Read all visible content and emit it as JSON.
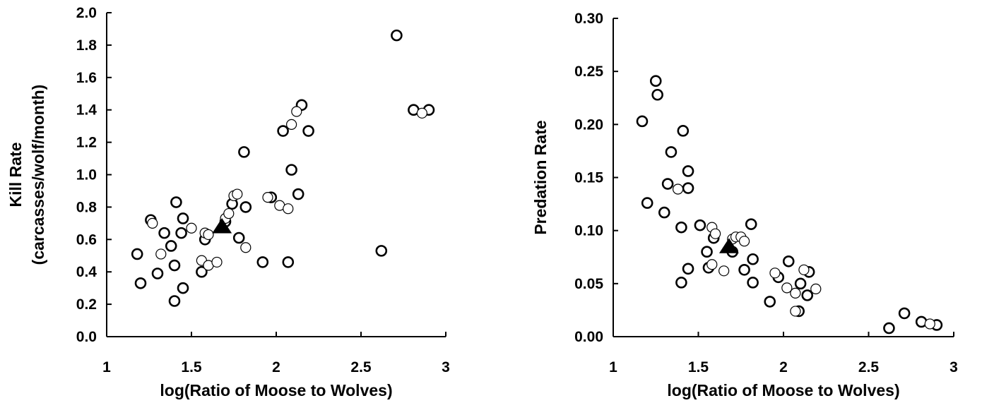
{
  "chart_data": [
    {
      "type": "scatter",
      "title": "",
      "xlabel": "log(Ratio of Moose to Wolves)",
      "ylabel": [
        "Kill Rate",
        "(carcasses/wolf/month)"
      ],
      "xlim": [
        1,
        3
      ],
      "ylim": [
        0,
        2.0
      ],
      "x_ticks": [
        "1",
        "1.5",
        "2",
        "2.5",
        "3"
      ],
      "y_ticks": [
        "0.0",
        "0.2",
        "0.4",
        "0.6",
        "0.8",
        "1.0",
        "1.2",
        "1.4",
        "1.6",
        "1.8",
        "2.0"
      ],
      "grid": false,
      "legend": "none",
      "series": [
        {
          "marker": "open-circle-thick",
          "points": [
            [
              1.18,
              0.51
            ],
            [
              1.2,
              0.33
            ],
            [
              1.26,
              0.72
            ],
            [
              1.3,
              0.39
            ],
            [
              1.34,
              0.64
            ],
            [
              1.38,
              0.56
            ],
            [
              1.4,
              0.22
            ],
            [
              1.4,
              0.44
            ],
            [
              1.41,
              0.83
            ],
            [
              1.44,
              0.64
            ],
            [
              1.45,
              0.73
            ],
            [
              1.45,
              0.3
            ],
            [
              1.56,
              0.4
            ],
            [
              1.58,
              0.6
            ],
            [
              1.7,
              0.71
            ],
            [
              1.74,
              0.82
            ],
            [
              1.78,
              0.61
            ],
            [
              1.81,
              1.14
            ],
            [
              1.82,
              0.8
            ],
            [
              1.92,
              0.46
            ],
            [
              1.97,
              0.86
            ],
            [
              2.04,
              1.27
            ],
            [
              2.07,
              0.46
            ],
            [
              2.09,
              1.03
            ],
            [
              2.13,
              0.88
            ],
            [
              2.15,
              1.43
            ],
            [
              2.19,
              1.27
            ],
            [
              2.62,
              0.53
            ],
            [
              2.71,
              1.86
            ],
            [
              2.81,
              1.4
            ],
            [
              2.9,
              1.4
            ]
          ]
        },
        {
          "marker": "open-circle-thin",
          "points": [
            [
              1.27,
              0.7
            ],
            [
              1.32,
              0.51
            ],
            [
              1.5,
              0.67
            ],
            [
              1.56,
              0.47
            ],
            [
              1.58,
              0.64
            ],
            [
              1.6,
              0.44
            ],
            [
              1.6,
              0.63
            ],
            [
              1.65,
              0.46
            ],
            [
              1.7,
              0.73
            ],
            [
              1.72,
              0.76
            ],
            [
              1.75,
              0.87
            ],
            [
              1.77,
              0.88
            ],
            [
              1.82,
              0.55
            ],
            [
              1.95,
              0.86
            ],
            [
              2.02,
              0.81
            ],
            [
              2.07,
              0.79
            ],
            [
              2.09,
              1.31
            ],
            [
              2.12,
              1.39
            ],
            [
              2.86,
              1.38
            ]
          ]
        },
        {
          "marker": "filled-triangle",
          "points": [
            [
              1.68,
              0.68
            ]
          ]
        }
      ]
    },
    {
      "type": "scatter",
      "title": "",
      "xlabel": "log(Ratio of Moose to Wolves)",
      "ylabel": [
        "Predation Rate"
      ],
      "xlim": [
        1,
        3
      ],
      "ylim": [
        0,
        0.3
      ],
      "x_ticks": [
        "1",
        "1.5",
        "2",
        "2.5",
        "3"
      ],
      "y_ticks": [
        "0.00",
        "0.05",
        "0.10",
        "0.15",
        "0.20",
        "0.25",
        "0.30"
      ],
      "grid": false,
      "legend": "none",
      "series": [
        {
          "marker": "open-circle-thick",
          "points": [
            [
              1.17,
              0.203
            ],
            [
              1.2,
              0.126
            ],
            [
              1.25,
              0.241
            ],
            [
              1.26,
              0.228
            ],
            [
              1.3,
              0.117
            ],
            [
              1.32,
              0.144
            ],
            [
              1.34,
              0.174
            ],
            [
              1.4,
              0.051
            ],
            [
              1.4,
              0.103
            ],
            [
              1.41,
              0.194
            ],
            [
              1.44,
              0.14
            ],
            [
              1.44,
              0.156
            ],
            [
              1.44,
              0.064
            ],
            [
              1.51,
              0.105
            ],
            [
              1.55,
              0.08
            ],
            [
              1.56,
              0.065
            ],
            [
              1.59,
              0.093
            ],
            [
              1.7,
              0.08
            ],
            [
              1.77,
              0.063
            ],
            [
              1.81,
              0.106
            ],
            [
              1.82,
              0.073
            ],
            [
              1.82,
              0.051
            ],
            [
              1.92,
              0.033
            ],
            [
              1.97,
              0.056
            ],
            [
              2.03,
              0.071
            ],
            [
              2.09,
              0.024
            ],
            [
              2.1,
              0.05
            ],
            [
              2.14,
              0.039
            ],
            [
              2.15,
              0.061
            ],
            [
              2.62,
              0.008
            ],
            [
              2.71,
              0.022
            ],
            [
              2.81,
              0.014
            ],
            [
              2.9,
              0.011
            ]
          ]
        },
        {
          "marker": "open-circle-thin",
          "points": [
            [
              1.38,
              0.139
            ],
            [
              1.58,
              0.103
            ],
            [
              1.58,
              0.068
            ],
            [
              1.6,
              0.097
            ],
            [
              1.65,
              0.062
            ],
            [
              1.7,
              0.092
            ],
            [
              1.72,
              0.094
            ],
            [
              1.75,
              0.094
            ],
            [
              1.77,
              0.09
            ],
            [
              1.95,
              0.06
            ],
            [
              2.02,
              0.046
            ],
            [
              2.07,
              0.041
            ],
            [
              2.07,
              0.024
            ],
            [
              2.12,
              0.063
            ],
            [
              2.19,
              0.045
            ],
            [
              2.86,
              0.012
            ]
          ]
        },
        {
          "marker": "filled-triangle",
          "points": [
            [
              1.68,
              0.085
            ]
          ]
        }
      ]
    }
  ]
}
